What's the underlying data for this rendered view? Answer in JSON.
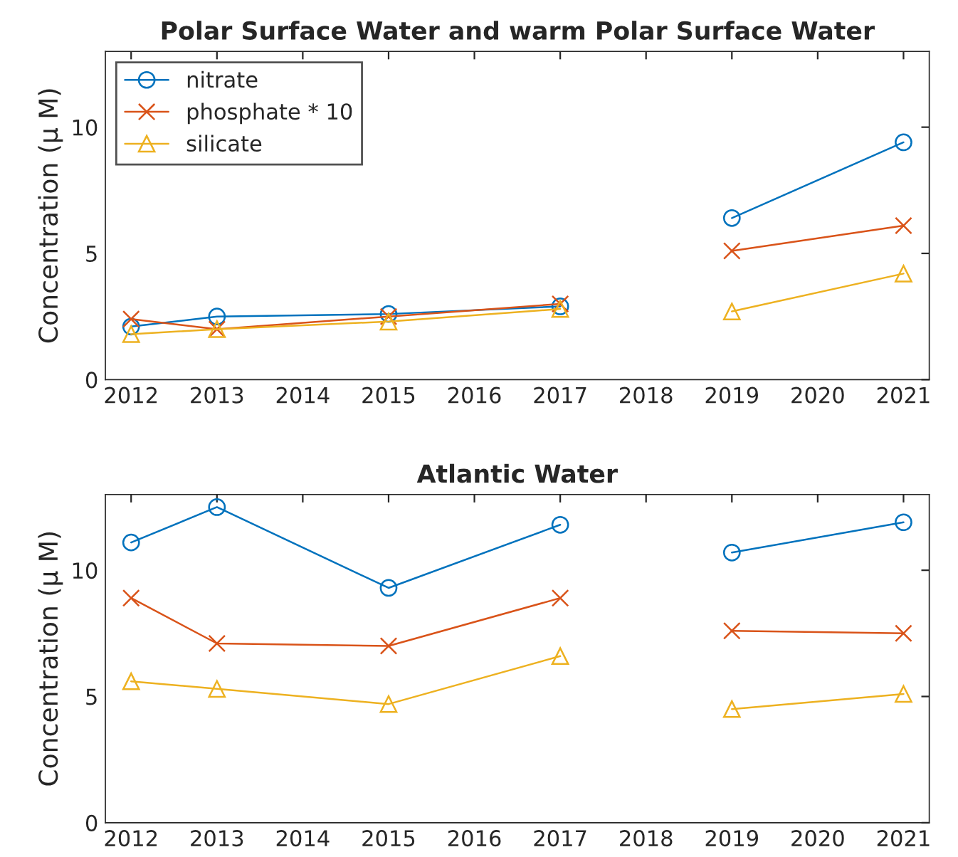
{
  "chart_data": [
    {
      "type": "line",
      "title": "Polar Surface Water and warm Polar Surface Water",
      "ylabel": "Concentration (μ M)",
      "x": [
        2012,
        2013,
        2015,
        2017,
        2018,
        2019,
        2021
      ],
      "xlim": [
        2011.7,
        2021.3
      ],
      "xticks": [
        2012,
        2013,
        2014,
        2015,
        2016,
        2017,
        2018,
        2019,
        2020,
        2021
      ],
      "ylim": [
        0,
        13
      ],
      "yticks": [
        0,
        5,
        10
      ],
      "grid": false,
      "legend": "top left",
      "series": [
        {
          "name": "nitrate",
          "color": "#0072bd",
          "marker": "circle",
          "values": [
            2.1,
            2.5,
            2.6,
            2.9,
            null,
            6.4,
            9.4
          ]
        },
        {
          "name": "phosphate * 10",
          "color": "#d95319",
          "marker": "cross",
          "values": [
            2.4,
            2.0,
            2.5,
            3.0,
            null,
            5.1,
            6.1
          ]
        },
        {
          "name": "silicate",
          "color": "#edb120",
          "marker": "triangle",
          "values": [
            1.8,
            2.0,
            2.3,
            2.8,
            null,
            2.7,
            4.2
          ]
        }
      ]
    },
    {
      "type": "line",
      "title": "Atlantic Water",
      "ylabel": "Concentration (μ M)",
      "x": [
        2012,
        2013,
        2015,
        2017,
        2018,
        2019,
        2021
      ],
      "xlim": [
        2011.7,
        2021.3
      ],
      "xticks": [
        2012,
        2013,
        2014,
        2015,
        2016,
        2017,
        2018,
        2019,
        2020,
        2021
      ],
      "ylim": [
        0,
        13
      ],
      "yticks": [
        0,
        5,
        10
      ],
      "grid": false,
      "legend": false,
      "series": [
        {
          "color": "#0072bd",
          "marker": "circle",
          "values": [
            11.1,
            12.5,
            9.3,
            11.8,
            null,
            10.7,
            11.9
          ]
        },
        {
          "color": "#d95319",
          "marker": "cross",
          "values": [
            8.9,
            7.1,
            7.0,
            8.9,
            null,
            7.6,
            7.5
          ]
        },
        {
          "color": "#edb120",
          "marker": "triangle",
          "values": [
            5.6,
            5.3,
            4.7,
            6.6,
            null,
            4.5,
            5.1
          ]
        }
      ]
    }
  ]
}
